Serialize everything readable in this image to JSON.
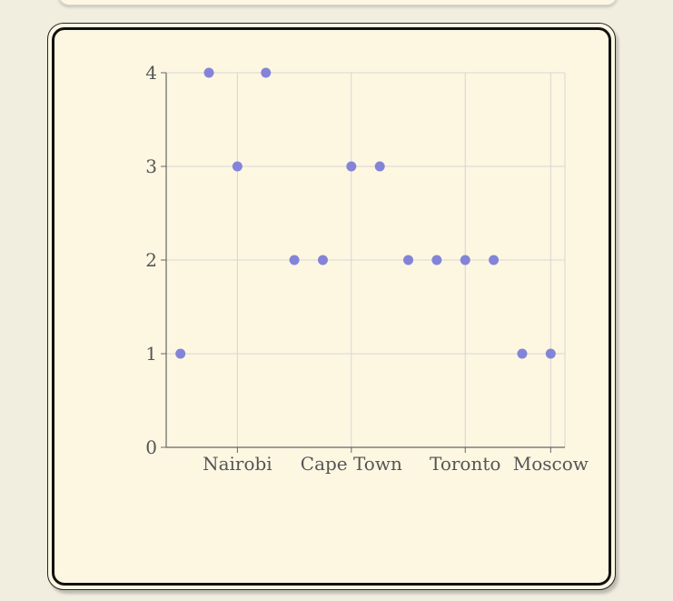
{
  "chart_data": {
    "type": "scatter",
    "title": "",
    "xlabel": "",
    "ylabel": "",
    "x_tick_labels": [
      {
        "label": "Nairobi",
        "x": 3
      },
      {
        "label": "Cape Town",
        "x": 7
      },
      {
        "label": "Toronto",
        "x": 11
      },
      {
        "label": "Moscow",
        "x": 14
      }
    ],
    "xlim": [
      0.5,
      14.5
    ],
    "ylim": [
      0,
      4
    ],
    "y_ticks": [
      0,
      1,
      2,
      3,
      4
    ],
    "grid": true,
    "point_color": "#8384d8",
    "points": [
      {
        "x": 1,
        "y": 1
      },
      {
        "x": 2,
        "y": 4
      },
      {
        "x": 3,
        "y": 3
      },
      {
        "x": 4,
        "y": 4
      },
      {
        "x": 5,
        "y": 2
      },
      {
        "x": 6,
        "y": 2
      },
      {
        "x": 7,
        "y": 3
      },
      {
        "x": 8,
        "y": 3
      },
      {
        "x": 9,
        "y": 2
      },
      {
        "x": 10,
        "y": 2
      },
      {
        "x": 11,
        "y": 2
      },
      {
        "x": 12,
        "y": 2
      },
      {
        "x": 13,
        "y": 1
      },
      {
        "x": 14,
        "y": 1
      }
    ]
  }
}
